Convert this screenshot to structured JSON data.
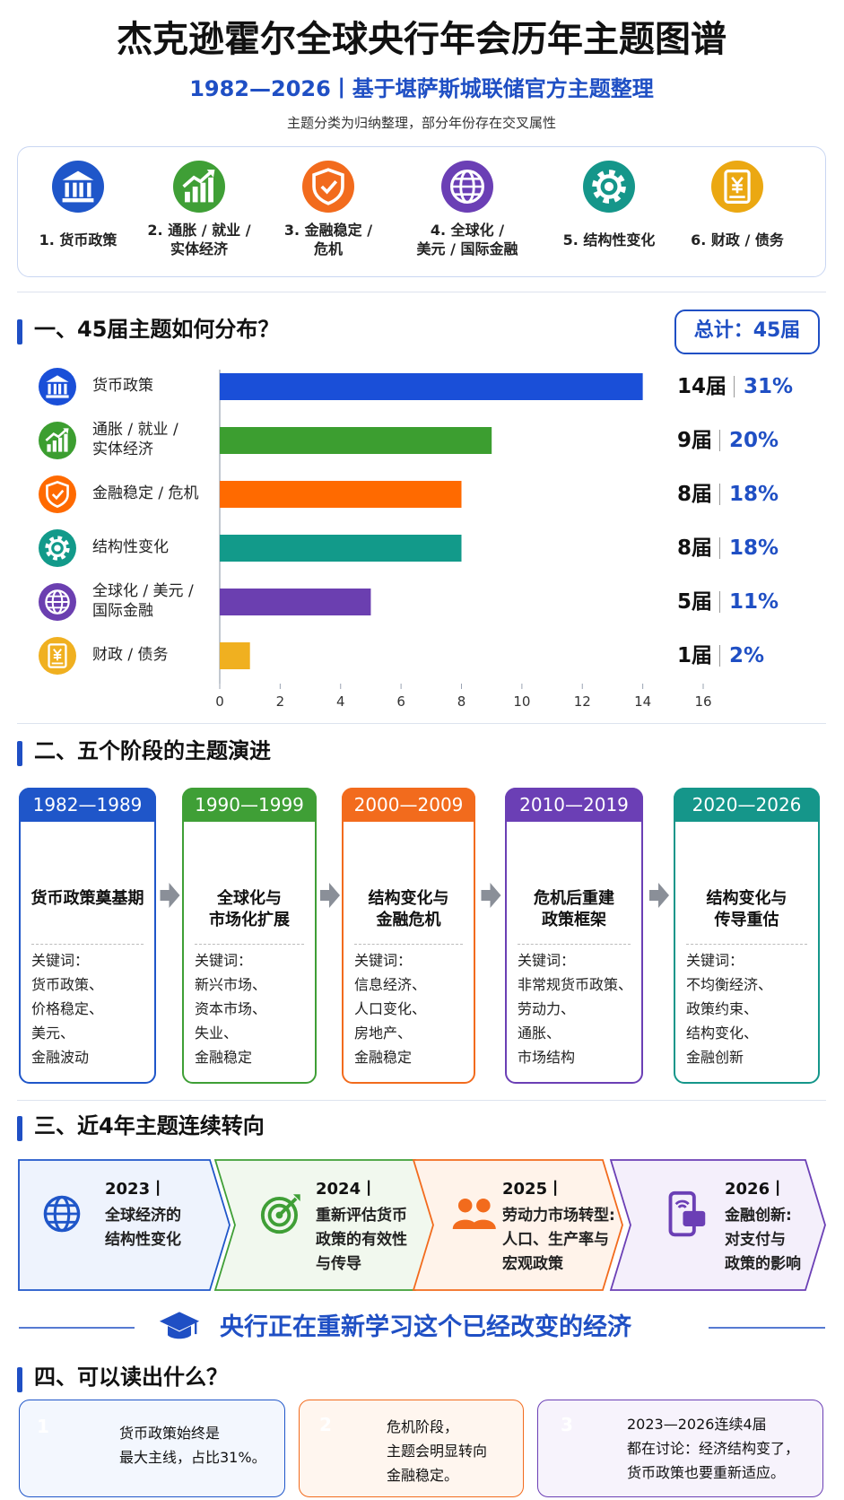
{
  "header": {
    "title": "杰克逊霍尔全球央行年会历年主题图谱",
    "subtitle": "1982—2026丨基于堪萨斯城联储官方主题整理",
    "note": "主题分类为归纳整理，部分年份存在交叉属性"
  },
  "legend": [
    {
      "label": "1. 货币政策",
      "icon": "bank",
      "color": "#1f56c9"
    },
    {
      "label": "2. 通胀 / 就业 /\n实体经济",
      "icon": "chart",
      "color": "#3f9f36"
    },
    {
      "label": "3. 金融稳定 /\n危机",
      "icon": "shield",
      "color": "#f26b1d"
    },
    {
      "label": "4. 全球化 /\n美元 / 国际金融",
      "icon": "globe",
      "color": "#6b3fb5"
    },
    {
      "label": "5. 结构性变化",
      "icon": "gear",
      "color": "#15968a"
    },
    {
      "label": "6. 财政 / 债务",
      "icon": "doc",
      "color": "#eba812"
    }
  ],
  "section1": {
    "heading": "一、45届主题如何分布？",
    "total": "总计：45届"
  },
  "chart_data": {
    "type": "bar",
    "orientation": "horizontal",
    "categories": [
      "货币政策",
      "通胀 / 就业 /\n实体经济",
      "金融稳定 / 危机",
      "结构性变化",
      "全球化 / 美元 /\n国际金融",
      "财政 / 债务"
    ],
    "icons": [
      "bank",
      "chart",
      "shield",
      "gear",
      "globe",
      "doc"
    ],
    "values": [
      14,
      9,
      8,
      8,
      5,
      1
    ],
    "value_labels": [
      "14届",
      "9届",
      "8届",
      "8届",
      "5届",
      "1届"
    ],
    "shares": [
      31,
      20,
      18,
      18,
      11,
      2
    ],
    "share_labels": [
      "31%",
      "20%",
      "18%",
      "18%",
      "11%",
      "2%"
    ],
    "colors": [
      "#1a4fd8",
      "#3c9e30",
      "#ff6a00",
      "#129a8a",
      "#6b3fb0",
      "#f0b020"
    ],
    "xlim": [
      0,
      16
    ],
    "xticks": [
      0,
      2,
      4,
      6,
      8,
      10,
      12,
      14,
      16
    ]
  },
  "section2": {
    "heading": "二、五个阶段的主题演进",
    "stages": [
      {
        "period": "1982—1989",
        "title": "货币政策奠基期",
        "keyword_label": "关键词：",
        "keywords": [
          "货币政策、",
          "价格稳定、",
          "美元、",
          "金融波动"
        ],
        "color": "#1f56c9",
        "icon": "bank"
      },
      {
        "period": "1990—1999",
        "title": "全球化与\n市场化扩展",
        "keyword_label": "关键词：",
        "keywords": [
          "新兴市场、",
          "资本市场、",
          "失业、",
          "金融稳定"
        ],
        "color": "#3f9f36",
        "icon": "globe"
      },
      {
        "period": "2000—2009",
        "title": "结构变化与\n金融危机",
        "keyword_label": "关键词：",
        "keywords": [
          "信息经济、",
          "人口变化、",
          "房地产、",
          "金融稳定"
        ],
        "color": "#f26b1d",
        "icon": "house"
      },
      {
        "period": "2010—2019",
        "title": "危机后重建\n政策框架",
        "keyword_label": "关键词：",
        "keywords": [
          "非常规货币政策、",
          "劳动力、",
          "通胀、",
          "市场结构"
        ],
        "color": "#6b3fb5",
        "icon": "cycle"
      },
      {
        "period": "2020—2026",
        "title": "结构变化与\n传导重估",
        "keyword_label": "关键词：",
        "keywords": [
          "不均衡经济、",
          "政策约束、",
          "结构变化、",
          "金融创新"
        ],
        "color": "#15968a",
        "icon": "chart"
      }
    ]
  },
  "section3": {
    "heading": "三、近4年主题连续转向",
    "items": [
      {
        "year": "2023丨",
        "text": "全球经济的\n结构性变化",
        "color": "#1f56c9",
        "fill": "#eef3fd",
        "icon": "globe"
      },
      {
        "year": "2024丨",
        "text": "重新评估货币\n政策的有效性\n与传导",
        "color": "#3f9f36",
        "fill": "#f1f8ee",
        "icon": "target"
      },
      {
        "year": "2025丨",
        "text": "劳动力市场转型:\n人口、生产率与\n宏观政策",
        "color": "#f26b1d",
        "fill": "#fff3ea",
        "icon": "people"
      },
      {
        "year": "2026丨",
        "text": "金融创新:\n对支付与\n政策的影响",
        "color": "#6b3fb5",
        "fill": "#f4effb",
        "icon": "phone"
      }
    ],
    "slogan": "央行正在重新学习这个已经改变的经济"
  },
  "section4": {
    "heading": "四、可以读出什么？",
    "cards": [
      {
        "number": 1,
        "text": "货币政策始终是\n最大主线，占比31%。",
        "color": "#1f56c9",
        "fill": "#f3f7fe",
        "icon": "chart"
      },
      {
        "number": 2,
        "text": "危机阶段，\n主题会明显转向\n金融稳定。",
        "color": "#f26b1d",
        "fill": "#fff6ef",
        "icon": "shield"
      },
      {
        "number": 3,
        "text": "2023—2026连续4届\n都在讨论：经济结构变了，\n货币政策也要重新适应。",
        "color": "#6b3fb5",
        "fill": "#f7f3fc",
        "icon": "magnifier"
      }
    ]
  }
}
